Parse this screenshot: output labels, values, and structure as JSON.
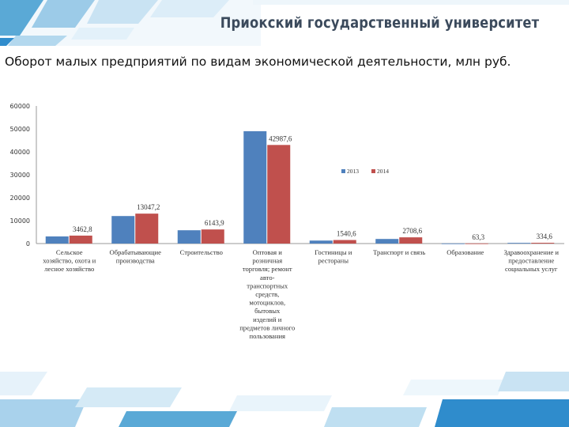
{
  "header": {
    "university": "Приокский государственный университет"
  },
  "page_title": "Оборот малых предприятий по видам экономической деятельности, млн руб.",
  "colors": {
    "series_2013": "#4f81bd",
    "series_2014": "#c0504d",
    "accent_dark": "#1a8fc9",
    "accent_light": "#b9dcf0"
  },
  "chart_data": {
    "type": "bar",
    "categories": [
      [
        "Сельское",
        "хозяйство, охота и",
        "лесное хозяйство"
      ],
      [
        "Обрабатывающие",
        "производства"
      ],
      [
        "Строительство"
      ],
      [
        "Оптовая и",
        "розничная",
        "торговля; ремонт",
        "авто-",
        "транспортных",
        "средств,",
        "мотоциклов,",
        "бытовых",
        "изделий и",
        "предметов личного",
        "пользования"
      ],
      [
        "Гостиницы и",
        "рестораны"
      ],
      [
        "Транспорт и связь"
      ],
      [
        "Образование"
      ],
      [
        "Здравоохранение и",
        "предоставление",
        "социальных услуг"
      ]
    ],
    "series": [
      {
        "name": "2013",
        "values": [
          3100,
          12000,
          5800,
          49000,
          1300,
          2000,
          50,
          300
        ]
      },
      {
        "name": "2014",
        "values": [
          3462.8,
          13047.2,
          6143.9,
          42987.6,
          1540.6,
          2708.6,
          63.3,
          334.6
        ]
      }
    ],
    "data_labels": [
      "3462,8",
      "13047,2",
      "6143,9",
      "42987,6",
      "1540,6",
      "2708,6",
      "63,3",
      "334,6"
    ],
    "y_ticks": [
      "0",
      "10000",
      "20000",
      "30000",
      "40000",
      "50000",
      "60000"
    ],
    "ylim": [
      0,
      60000
    ],
    "legend_position": "right",
    "grid": false
  }
}
